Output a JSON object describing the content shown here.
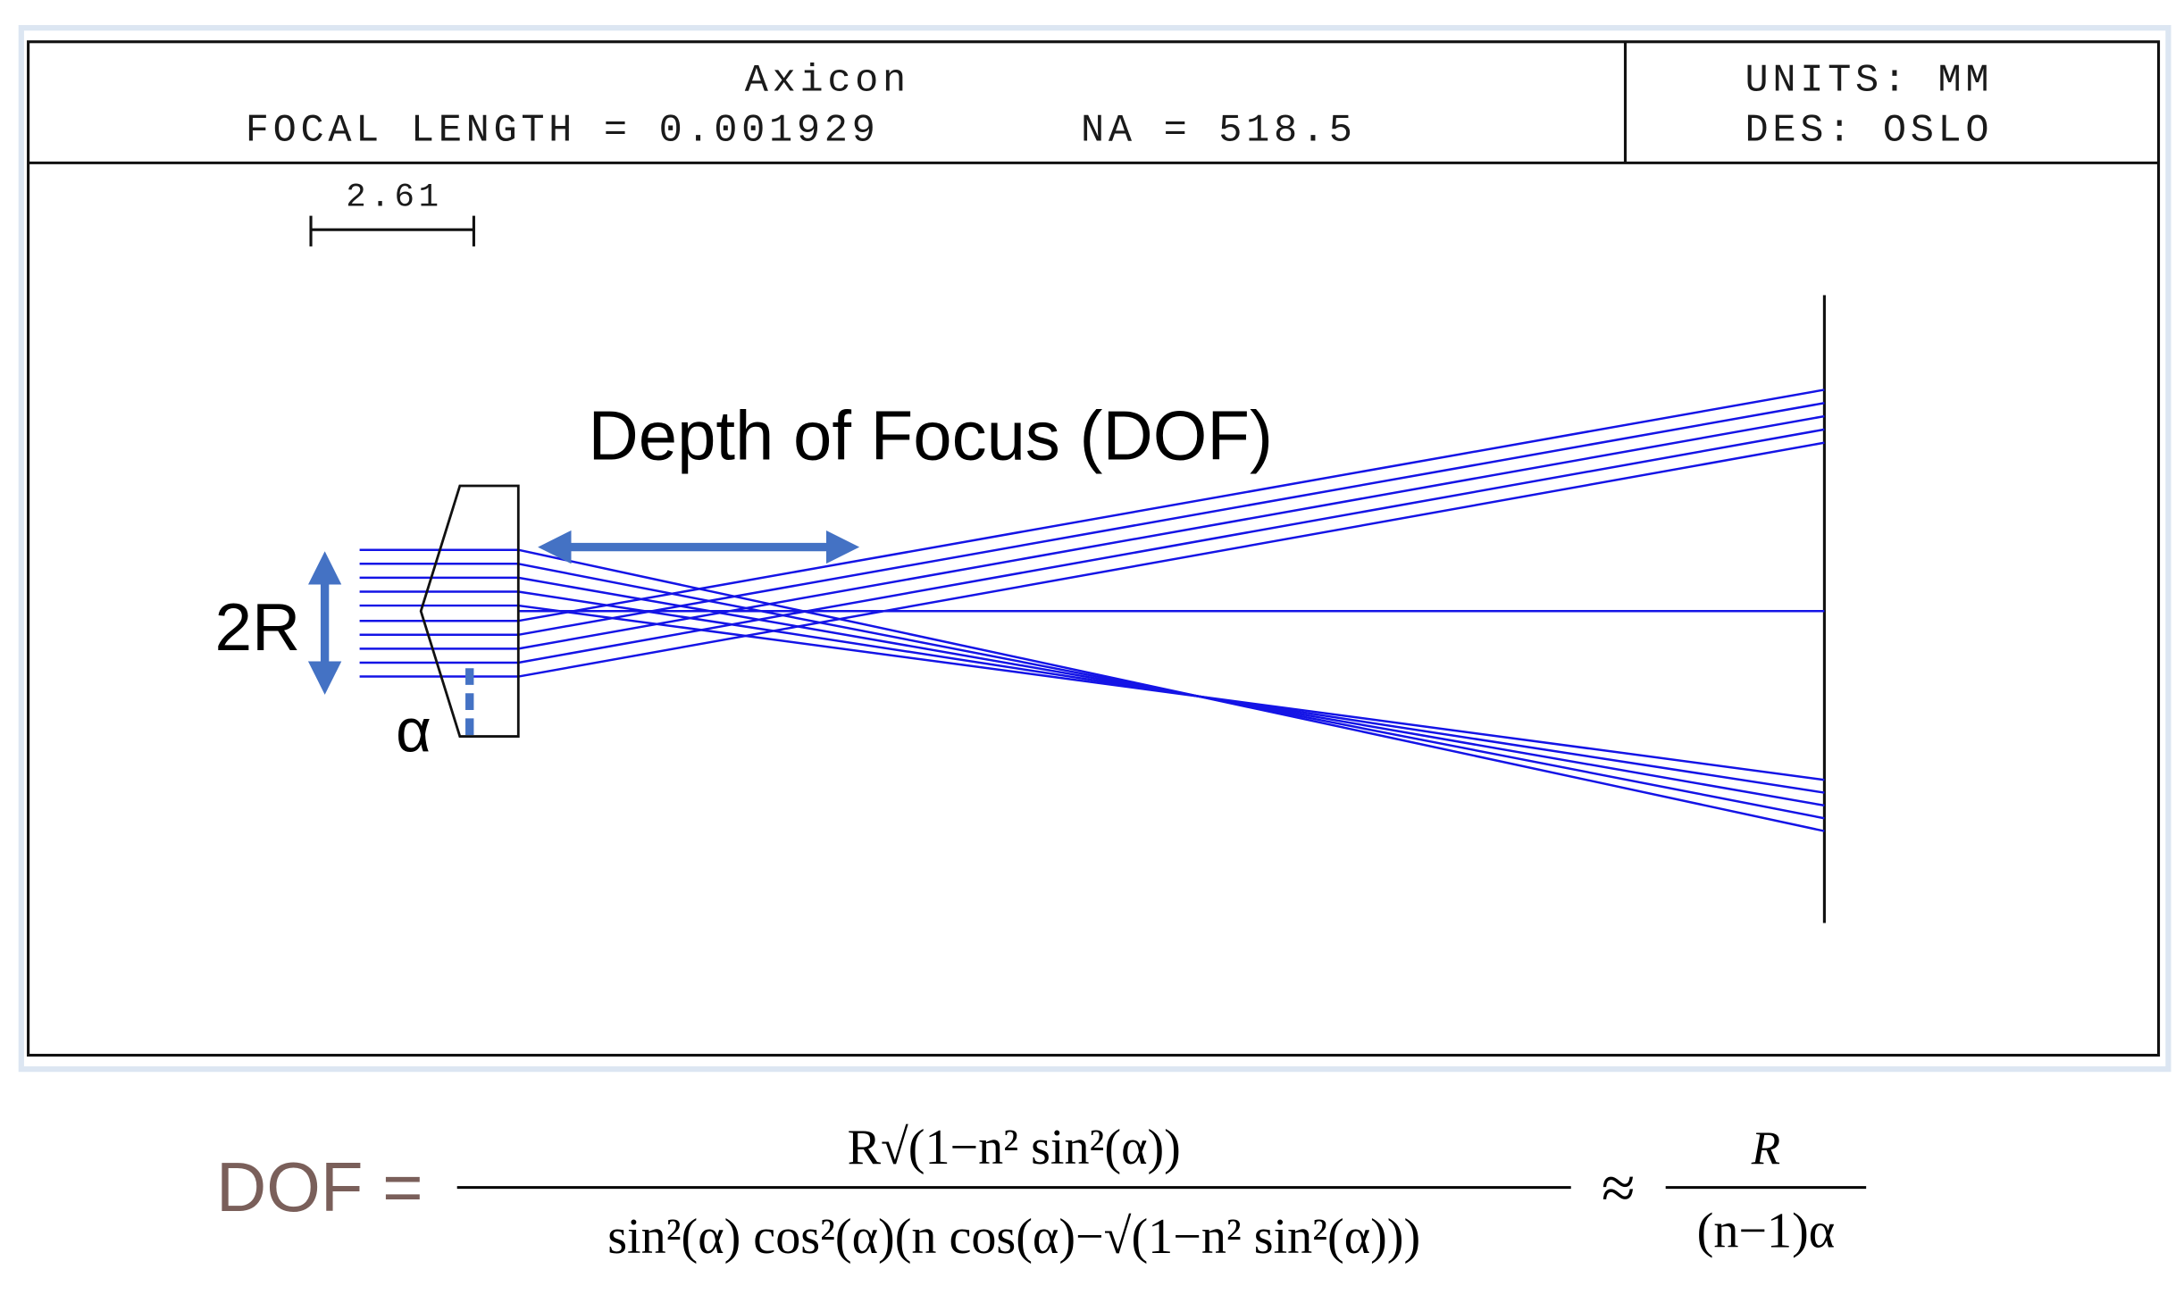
{
  "header": {
    "title": "Axicon",
    "focal_length": "FOCAL LENGTH = 0.001929",
    "na": "NA = 518.5",
    "units": "UNITS: MM",
    "designer": "DES: OSLO"
  },
  "scale_bar": {
    "label": "2.61"
  },
  "annotations": {
    "dof": "Depth of Focus (DOF)",
    "aperture": "2R",
    "angle": "α"
  },
  "formula": {
    "lhs": "DOF =",
    "numerator": "R√(1−n² sin²(α))",
    "denominator": "sin²(α) cos²(α)(n cos(α)−√(1−n² sin²(α)))",
    "approx": "≈",
    "approx_numerator": "R",
    "approx_denominator": "(n−1)α"
  }
}
